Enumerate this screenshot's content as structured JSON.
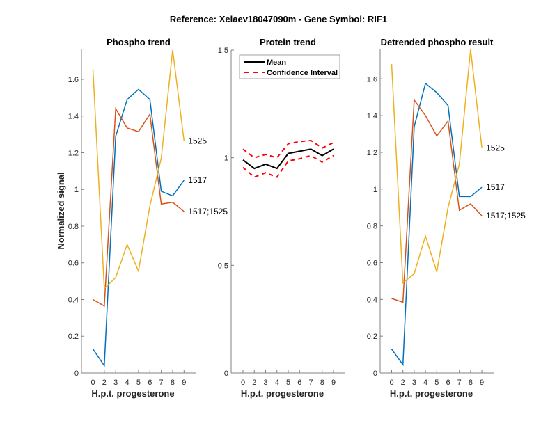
{
  "chart_data": {
    "suptitle": "Reference:  Xelaev18047090m - Gene Symbol:  RIF1",
    "colors": {
      "1517": "#0072BD",
      "1517;1525": "#D95319",
      "1525": "#EDB120",
      "mean": "#000000",
      "ci": "#FF0000",
      "axis": "#808080"
    },
    "panels": [
      {
        "id": "phospho-trend",
        "type": "line",
        "title": "Phospho trend",
        "xlabel": "H.p.t. progesterone",
        "ylabel": "Normalized signal",
        "x_tick_labels": [
          "0",
          "2",
          "3",
          "4",
          "5",
          "6",
          "7",
          "8",
          "9"
        ],
        "ylim": [
          0,
          1.763
        ],
        "y_ticks": [
          0,
          0.2,
          0.4,
          0.6,
          0.8,
          1,
          1.2,
          1.4,
          1.6
        ],
        "y_tick_labels": [
          "0",
          "0.2",
          "0.4",
          "0.6",
          "0.8",
          "1",
          "1.2",
          "1.4",
          "1.6"
        ],
        "series": [
          {
            "name": "1517",
            "label": "1517",
            "values": [
              0.13,
              0.04,
              1.29,
              1.49,
              1.545,
              1.49,
              0.99,
              0.965,
              1.05
            ]
          },
          {
            "name": "1517;1525",
            "label": "1517;1525",
            "values": [
              0.4,
              0.365,
              1.44,
              1.335,
              1.315,
              1.41,
              0.92,
              0.93,
              0.88
            ]
          },
          {
            "name": "1525",
            "label": "1525",
            "values": [
              1.655,
              0.46,
              0.52,
              0.7,
              0.555,
              0.91,
              1.17,
              1.76,
              1.265
            ]
          }
        ]
      },
      {
        "id": "protein-trend",
        "type": "line",
        "title": "Protein trend",
        "xlabel": "H.p.t. progesterone",
        "ylabel": "",
        "x_tick_labels": [
          "0",
          "2",
          "3",
          "4",
          "5",
          "6",
          "7",
          "8",
          "9"
        ],
        "ylim": [
          0,
          1.5
        ],
        "y_ticks": [
          0,
          0.5,
          1,
          1.5
        ],
        "y_tick_labels": [
          "0",
          "0.5",
          "1",
          "1.5"
        ],
        "legend": {
          "placement": "top-left",
          "entries": [
            "Mean",
            "Confidence Interval"
          ]
        },
        "series": [
          {
            "name": "Mean",
            "values": [
              0.99,
              0.95,
              0.97,
              0.95,
              1.02,
              1.03,
              1.04,
              1.01,
              1.04
            ]
          },
          {
            "name": "CI upper",
            "values": [
              1.04,
              1.0,
              1.015,
              1.0,
              1.065,
              1.075,
              1.08,
              1.045,
              1.07
            ]
          },
          {
            "name": "CI lower",
            "values": [
              0.955,
              0.91,
              0.93,
              0.91,
              0.985,
              0.995,
              1.01,
              0.98,
              1.01
            ]
          }
        ]
      },
      {
        "id": "detrended-phospho",
        "type": "line",
        "title": "Detrended phospho result",
        "xlabel": "H.p.t. progesterone",
        "ylabel": "",
        "x_tick_labels": [
          "0",
          "2",
          "3",
          "4",
          "5",
          "6",
          "7",
          "8",
          "9"
        ],
        "ylim": [
          0,
          1.76
        ],
        "y_ticks": [
          0,
          0.2,
          0.4,
          0.6,
          0.8,
          1,
          1.2,
          1.4,
          1.6
        ],
        "y_tick_labels": [
          "0",
          "0.2",
          "0.4",
          "0.6",
          "0.8",
          "1",
          "1.2",
          "1.4",
          "1.6"
        ],
        "series": [
          {
            "name": "1517",
            "label": "1517",
            "values": [
              0.13,
              0.045,
              1.34,
              1.575,
              1.525,
              1.455,
              0.96,
              0.96,
              1.01
            ]
          },
          {
            "name": "1517;1525",
            "label": "1517;1525",
            "values": [
              0.405,
              0.385,
              1.485,
              1.4,
              1.29,
              1.37,
              0.885,
              0.92,
              0.855
            ]
          },
          {
            "name": "1525",
            "label": "1525",
            "values": [
              1.68,
              0.49,
              0.54,
              0.745,
              0.55,
              0.9,
              1.135,
              1.76,
              1.225
            ]
          }
        ]
      }
    ]
  }
}
